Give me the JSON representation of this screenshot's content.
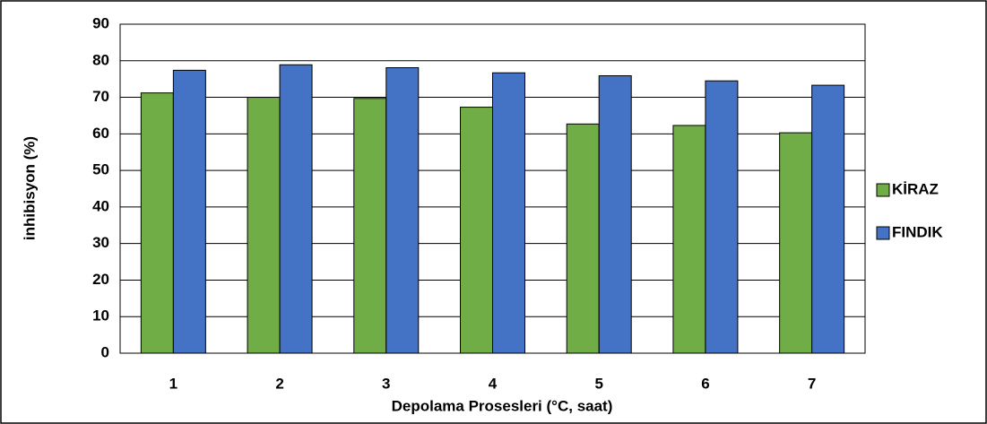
{
  "chart_data": {
    "type": "bar",
    "x_label": "Depolama Prosesleri (°C, saat)",
    "y_label": "inhibisyon (%)",
    "categories": [
      "1",
      "2",
      "3",
      "4",
      "5",
      "6",
      "7"
    ],
    "series": [
      {
        "name": "KİRAZ",
        "color": "#70ad47",
        "values": [
          71.2,
          70,
          69.7,
          67.3,
          62.7,
          62.3,
          60.3
        ]
      },
      {
        "name": "FINDIK",
        "color": "#4472c4",
        "values": [
          77.4,
          78.9,
          78.1,
          76.7,
          75.9,
          74.5,
          73.3
        ]
      }
    ],
    "ylim": [
      0,
      90
    ],
    "yticks": [
      0,
      10,
      20,
      30,
      40,
      50,
      60,
      70,
      80,
      90
    ],
    "grid": true,
    "legend": "right"
  }
}
